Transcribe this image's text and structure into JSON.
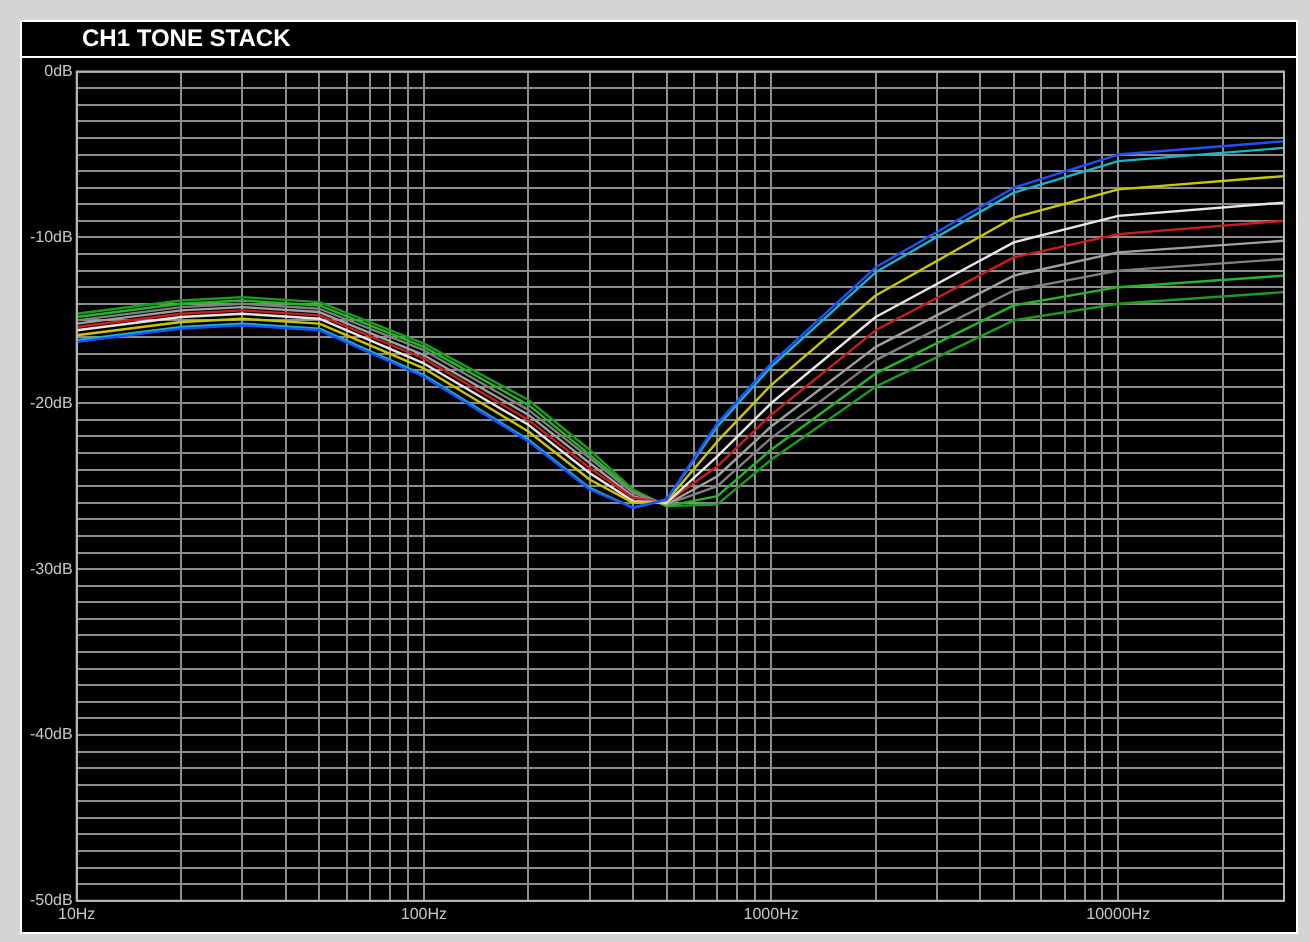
{
  "chart_data": {
    "type": "line",
    "title": "CH1 TONE STACK",
    "grid": true,
    "legend": false,
    "x": [
      10,
      20,
      30,
      50,
      100,
      200,
      300,
      400,
      500,
      700,
      1000,
      2000,
      5000,
      10000,
      30000
    ],
    "xlim": [
      10,
      30000
    ],
    "log": "x",
    "xticks": [
      {
        "value": 10,
        "label": "10Hz"
      },
      {
        "value": 20,
        "label": null
      },
      {
        "value": 30,
        "label": null
      },
      {
        "value": 40,
        "label": null
      },
      {
        "value": 50,
        "label": null
      },
      {
        "value": 60,
        "label": null
      },
      {
        "value": 70,
        "label": null
      },
      {
        "value": 80,
        "label": null
      },
      {
        "value": 90,
        "label": null
      },
      {
        "value": 100,
        "label": "100Hz"
      },
      {
        "value": 200,
        "label": null
      },
      {
        "value": 300,
        "label": null
      },
      {
        "value": 400,
        "label": null
      },
      {
        "value": 500,
        "label": null
      },
      {
        "value": 600,
        "label": null
      },
      {
        "value": 700,
        "label": null
      },
      {
        "value": 800,
        "label": null
      },
      {
        "value": 900,
        "label": null
      },
      {
        "value": 1000,
        "label": "1000Hz"
      },
      {
        "value": 2000,
        "label": null
      },
      {
        "value": 3000,
        "label": null
      },
      {
        "value": 4000,
        "label": null
      },
      {
        "value": 5000,
        "label": null
      },
      {
        "value": 6000,
        "label": null
      },
      {
        "value": 7000,
        "label": null
      },
      {
        "value": 8000,
        "label": null
      },
      {
        "value": 9000,
        "label": null
      },
      {
        "value": 10000,
        "label": "10000Hz"
      },
      {
        "value": 20000,
        "label": null
      }
    ],
    "ylim": [
      -50,
      0
    ],
    "yticks": [
      {
        "value": 0,
        "label": "0dB"
      },
      {
        "value": -1,
        "label": null
      },
      {
        "value": -2,
        "label": null
      },
      {
        "value": -3,
        "label": null
      },
      {
        "value": -4,
        "label": null
      },
      {
        "value": -5,
        "label": null
      },
      {
        "value": -6,
        "label": null
      },
      {
        "value": -7,
        "label": null
      },
      {
        "value": -8,
        "label": null
      },
      {
        "value": -9,
        "label": null
      },
      {
        "value": -10,
        "label": "-10dB"
      },
      {
        "value": -11,
        "label": null
      },
      {
        "value": -12,
        "label": null
      },
      {
        "value": -13,
        "label": null
      },
      {
        "value": -14,
        "label": null
      },
      {
        "value": -15,
        "label": null
      },
      {
        "value": -16,
        "label": null
      },
      {
        "value": -17,
        "label": null
      },
      {
        "value": -18,
        "label": null
      },
      {
        "value": -19,
        "label": null
      },
      {
        "value": -20,
        "label": "-20dB"
      },
      {
        "value": -21,
        "label": null
      },
      {
        "value": -22,
        "label": null
      },
      {
        "value": -23,
        "label": null
      },
      {
        "value": -24,
        "label": null
      },
      {
        "value": -25,
        "label": null
      },
      {
        "value": -26,
        "label": null
      },
      {
        "value": -27,
        "label": null
      },
      {
        "value": -28,
        "label": null
      },
      {
        "value": -29,
        "label": null
      },
      {
        "value": -30,
        "label": "-30dB"
      },
      {
        "value": -31,
        "label": null
      },
      {
        "value": -32,
        "label": null
      },
      {
        "value": -33,
        "label": null
      },
      {
        "value": -34,
        "label": null
      },
      {
        "value": -35,
        "label": null
      },
      {
        "value": -36,
        "label": null
      },
      {
        "value": -37,
        "label": null
      },
      {
        "value": -38,
        "label": null
      },
      {
        "value": -39,
        "label": null
      },
      {
        "value": -40,
        "label": "-40dB"
      },
      {
        "value": -41,
        "label": null
      },
      {
        "value": -42,
        "label": null
      },
      {
        "value": -43,
        "label": null
      },
      {
        "value": -44,
        "label": null
      },
      {
        "value": -45,
        "label": null
      },
      {
        "value": -46,
        "label": null
      },
      {
        "value": -47,
        "label": null
      },
      {
        "value": -48,
        "label": null
      },
      {
        "value": -49,
        "label": null
      },
      {
        "value": -50,
        "label": "-50dB"
      }
    ],
    "series": [
      {
        "color": "#1e50ff",
        "values": [
          -16.3,
          -15.5,
          -15.3,
          -15.6,
          -18.4,
          -22.3,
          -25.2,
          -26.3,
          -25.8,
          -21.2,
          -17.6,
          -11.8,
          -7.0,
          -5.0,
          -4.2
        ]
      },
      {
        "color": "#19b4c8",
        "values": [
          -16.2,
          -15.4,
          -15.2,
          -15.5,
          -18.3,
          -22.2,
          -25.1,
          -26.3,
          -25.8,
          -21.4,
          -17.8,
          -12.1,
          -7.3,
          -5.4,
          -4.6
        ]
      },
      {
        "color": "#c8c800",
        "values": [
          -15.9,
          -15.1,
          -14.9,
          -15.2,
          -17.9,
          -21.7,
          -24.6,
          -26.0,
          -25.9,
          -22.3,
          -18.9,
          -13.5,
          -8.8,
          -7.1,
          -6.3
        ]
      },
      {
        "color": "#e6e6e6",
        "values": [
          -15.6,
          -14.8,
          -14.6,
          -14.9,
          -17.6,
          -21.3,
          -24.2,
          -25.9,
          -26.0,
          -23.2,
          -20.0,
          -14.8,
          -10.3,
          -8.7,
          -7.9
        ]
      },
      {
        "color": "#c81e1e",
        "values": [
          -15.4,
          -14.6,
          -14.4,
          -14.7,
          -17.3,
          -21.0,
          -23.9,
          -25.7,
          -26.0,
          -23.8,
          -20.7,
          -15.6,
          -11.2,
          -9.8,
          -9.0
        ]
      },
      {
        "color": "#a0a0a0",
        "values": [
          -15.2,
          -14.4,
          -14.2,
          -14.5,
          -17.1,
          -20.7,
          -23.6,
          -25.6,
          -26.1,
          -24.4,
          -21.4,
          -16.6,
          -12.3,
          -10.9,
          -10.2
        ]
      },
      {
        "color": "#808080",
        "values": [
          -15.0,
          -14.2,
          -14.0,
          -14.3,
          -16.8,
          -20.4,
          -23.3,
          -25.4,
          -26.1,
          -25.0,
          -22.1,
          -17.4,
          -13.2,
          -12.0,
          -11.3
        ]
      },
      {
        "color": "#28b428",
        "values": [
          -14.8,
          -14.0,
          -13.8,
          -14.1,
          -16.6,
          -20.1,
          -23.1,
          -25.3,
          -26.2,
          -25.6,
          -22.8,
          -18.2,
          -14.1,
          -13.0,
          -12.3
        ]
      },
      {
        "color": "#1e9b1e",
        "values": [
          -14.6,
          -13.8,
          -13.6,
          -13.9,
          -16.4,
          -19.8,
          -22.8,
          -25.2,
          -26.2,
          -26.1,
          -23.4,
          -19.0,
          -15.0,
          -14.0,
          -13.3
        ]
      }
    ]
  }
}
